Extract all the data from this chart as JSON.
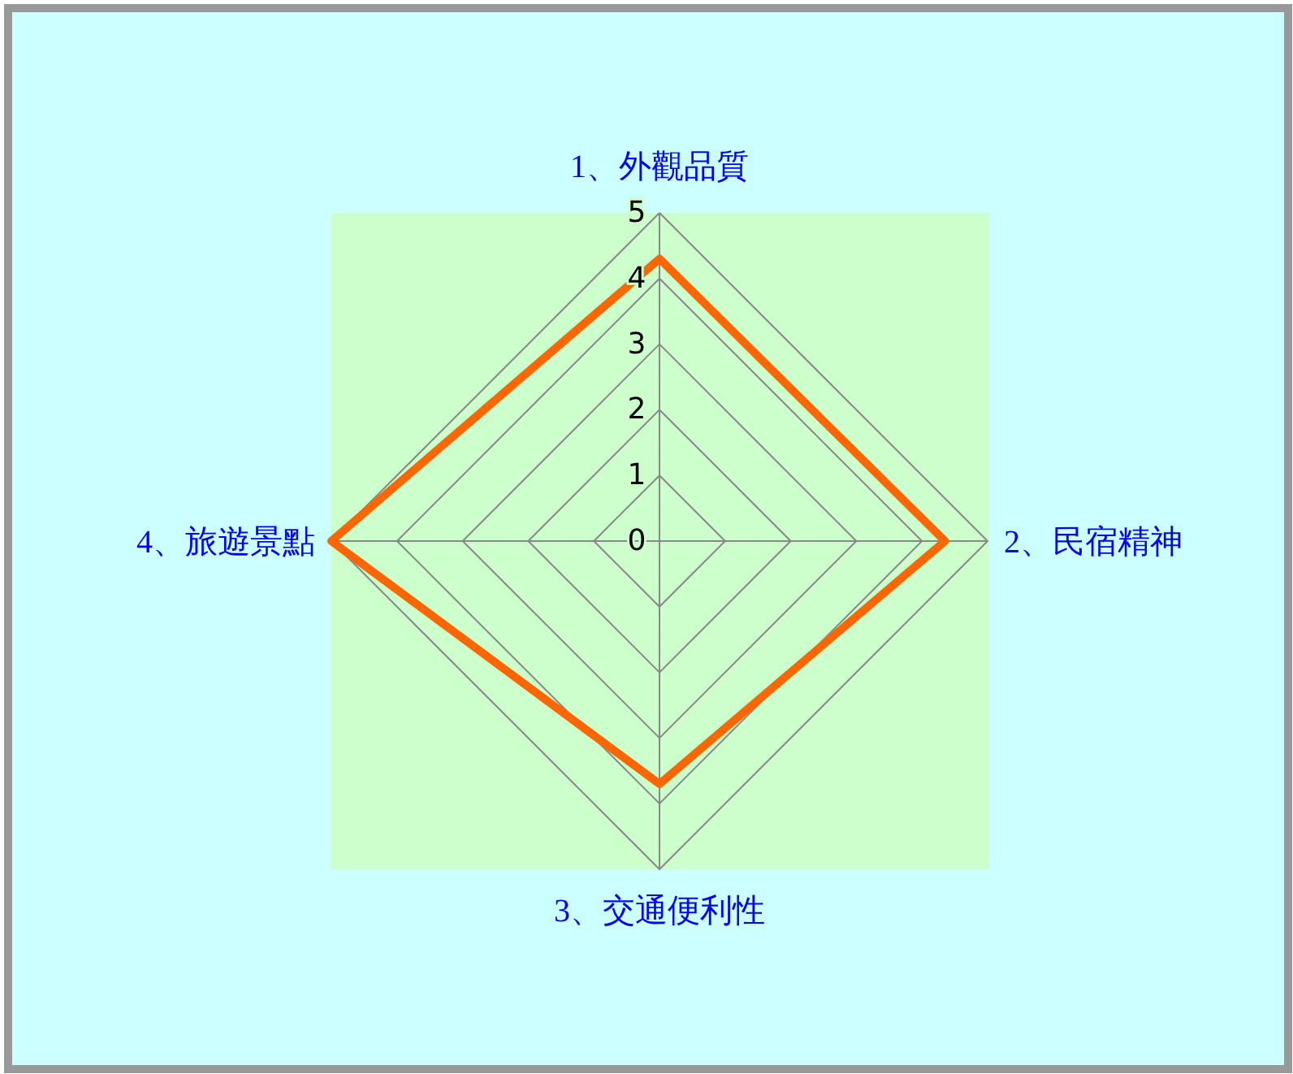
{
  "chart_data": {
    "type": "radar",
    "categories": [
      "1、外觀品質",
      "2、民宿精神",
      "3、交通便利性",
      "4、旅遊景點"
    ],
    "series": [
      {
        "color": "#ff6600",
        "values": [
          4.3,
          4.35,
          3.7,
          5
        ]
      }
    ],
    "ylim": [
      0,
      5
    ],
    "yticks": [
      0,
      1,
      2,
      3,
      4,
      5
    ],
    "grid": true,
    "marker": "none"
  }
}
